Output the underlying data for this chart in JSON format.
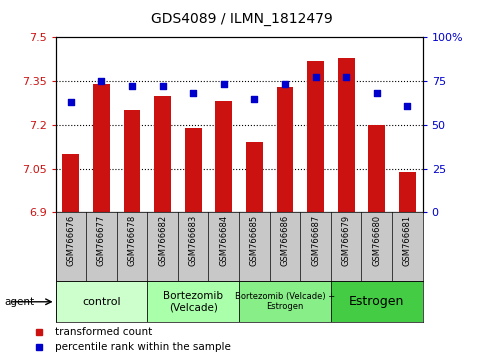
{
  "title": "GDS4089 / ILMN_1812479",
  "samples": [
    "GSM766676",
    "GSM766677",
    "GSM766678",
    "GSM766682",
    "GSM766683",
    "GSM766684",
    "GSM766685",
    "GSM766686",
    "GSM766687",
    "GSM766679",
    "GSM766680",
    "GSM766681"
  ],
  "bar_values": [
    7.1,
    7.34,
    7.25,
    7.3,
    7.19,
    7.28,
    7.14,
    7.33,
    7.42,
    7.43,
    7.2,
    7.04
  ],
  "percentile_values": [
    63,
    75,
    72,
    72,
    68,
    73,
    65,
    73,
    77,
    77,
    68,
    61
  ],
  "bar_color": "#cc1111",
  "percentile_color": "#0000cc",
  "ylim_left": [
    6.9,
    7.5
  ],
  "ylim_right": [
    0,
    100
  ],
  "yticks_left": [
    6.9,
    7.05,
    7.2,
    7.35,
    7.5
  ],
  "yticks_right": [
    0,
    25,
    50,
    75,
    100
  ],
  "groups": [
    {
      "label": "control",
      "start": 0,
      "end": 3,
      "color": "#ccffcc",
      "fontsize": 8
    },
    {
      "label": "Bortezomib\n(Velcade)",
      "start": 3,
      "end": 6,
      "color": "#aaffaa",
      "fontsize": 7.5
    },
    {
      "label": "Bortezomib (Velcade) +\nEstrogen",
      "start": 6,
      "end": 9,
      "color": "#88ee88",
      "fontsize": 6.0
    },
    {
      "label": "Estrogen",
      "start": 9,
      "end": 12,
      "color": "#44cc44",
      "fontsize": 9
    }
  ],
  "legend_red_label": "transformed count",
  "legend_blue_label": "percentile rank within the sample",
  "agent_label": "agent",
  "tick_bg_color": "#c8c8c8",
  "figsize": [
    4.83,
    3.54
  ],
  "dpi": 100
}
